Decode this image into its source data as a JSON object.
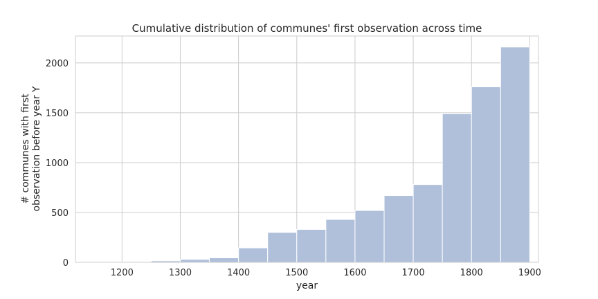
{
  "chart_data": {
    "type": "bar",
    "title": "Cumulative distribution of communes' first observation across time",
    "xlabel": "year",
    "ylabel_lines": [
      "# communes with first",
      "observation before year Y"
    ],
    "xlim": [
      1120,
      1915
    ],
    "ylim": [
      0,
      2270
    ],
    "xticks": [
      1200,
      1300,
      1400,
      1500,
      1600,
      1700,
      1800,
      1900
    ],
    "yticks": [
      0,
      500,
      1000,
      1500,
      2000
    ],
    "grid": true,
    "bar_color": "#b0c0db",
    "bar_edge_color": "#ffffff",
    "bin_width": 50,
    "bins": [
      {
        "start": 1150,
        "value": 2
      },
      {
        "start": 1200,
        "value": 5
      },
      {
        "start": 1250,
        "value": 15
      },
      {
        "start": 1300,
        "value": 30
      },
      {
        "start": 1350,
        "value": 45
      },
      {
        "start": 1400,
        "value": 145
      },
      {
        "start": 1450,
        "value": 300
      },
      {
        "start": 1500,
        "value": 330
      },
      {
        "start": 1550,
        "value": 430
      },
      {
        "start": 1600,
        "value": 520
      },
      {
        "start": 1650,
        "value": 670
      },
      {
        "start": 1700,
        "value": 780
      },
      {
        "start": 1750,
        "value": 1490
      },
      {
        "start": 1800,
        "value": 1760
      },
      {
        "start": 1850,
        "value": 2160
      }
    ]
  }
}
